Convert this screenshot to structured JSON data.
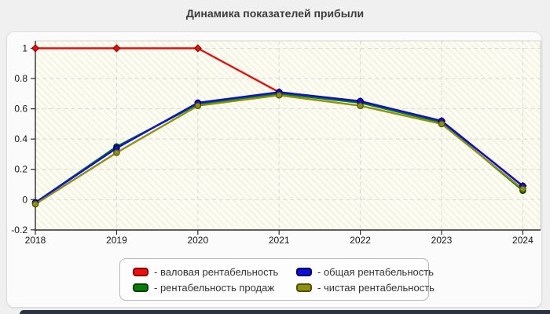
{
  "page": {
    "title": "Динамика показателей прибыли"
  },
  "chart_data": {
    "type": "line",
    "title": "Динамика показателей прибыли",
    "x_labels": [
      "2018",
      "2019",
      "2020",
      "2021",
      "2022",
      "2023",
      "2024"
    ],
    "y_tick_values": [
      1,
      0.8,
      0.6,
      0.4,
      0.2,
      0,
      -0.2
    ],
    "y_tick_labels": [
      "1",
      "0.8",
      "0.6",
      "0.4",
      "0.2",
      "0",
      "-0.2"
    ],
    "ylim": [
      -0.2,
      1.05
    ],
    "grid": "dashed",
    "legend_position": "bottom",
    "series": [
      {
        "key": "gross",
        "name": "валовая рентабельность",
        "color": "#e60f0f",
        "edge": "#8e0000",
        "marker": "diamond",
        "values": [
          1.0,
          1.0,
          1.0,
          0.71,
          0.65,
          0.52,
          0.09
        ]
      },
      {
        "key": "sales",
        "name": "рентабельность продаж",
        "color": "#077d07",
        "edge": "#034203",
        "marker": "circle",
        "values": [
          -0.02,
          0.35,
          0.63,
          0.7,
          0.64,
          0.51,
          0.06
        ]
      },
      {
        "key": "total",
        "name": "общая рентабельность",
        "color": "#0d0de0",
        "edge": "#000060",
        "marker": "circle",
        "values": [
          -0.02,
          0.34,
          0.64,
          0.71,
          0.65,
          0.52,
          0.09
        ]
      },
      {
        "key": "net",
        "name": "чистая рентабельность",
        "color": "#8f8f12",
        "edge": "#515100",
        "marker": "circle",
        "values": [
          -0.03,
          0.31,
          0.62,
          0.69,
          0.62,
          0.5,
          0.07
        ]
      }
    ],
    "legend_items": [
      {
        "key": "gross",
        "label": "- валовая рентабельность",
        "color": "#f00d0d",
        "edge": "#8e0000"
      },
      {
        "key": "total",
        "label": "- общая рентабельность",
        "color": "#0d0de0",
        "edge": "#000060"
      },
      {
        "key": "sales",
        "label": "- рентабельность продаж",
        "color": "#077d07",
        "edge": "#034203"
      },
      {
        "key": "net",
        "label": "- чистая рентабельность",
        "color": "#8f8f12",
        "edge": "#515100"
      }
    ]
  }
}
